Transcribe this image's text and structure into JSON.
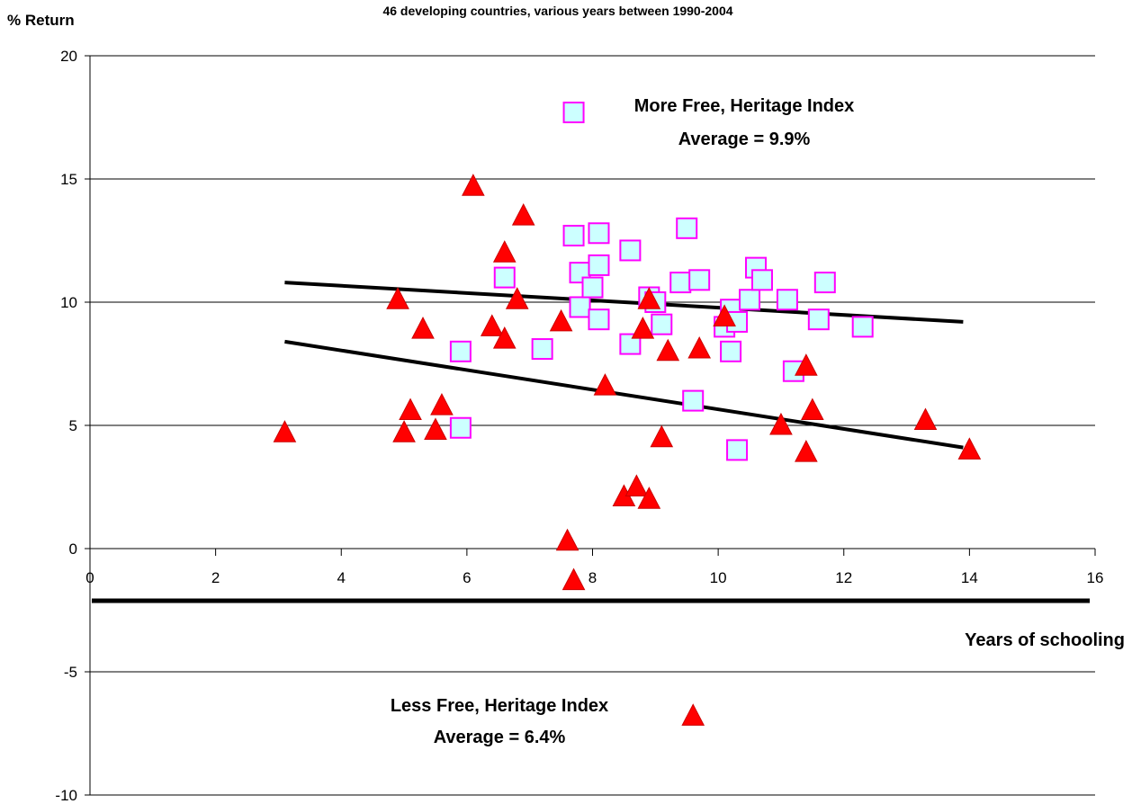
{
  "chart_data": {
    "type": "scatter",
    "title": "46 developing countries, various years between 1990-2004",
    "xlabel": "Years of schooling",
    "ylabel": "% Return",
    "xlim": [
      0,
      16
    ],
    "ylim": [
      -10,
      20
    ],
    "x_ticks": [
      "0",
      "2",
      "4",
      "6",
      "8",
      "10",
      "12",
      "14",
      "16"
    ],
    "y_ticks": [
      "20",
      "15",
      "10",
      "5",
      "0",
      "-5",
      "-10"
    ],
    "grid": "horizontal",
    "series": [
      {
        "marker": "square",
        "fill": "#ccffff",
        "stroke": "#ff00ff",
        "points": [
          [
            7.7,
            17.7
          ],
          [
            7.7,
            12.7
          ],
          [
            8.1,
            12.8
          ],
          [
            6.6,
            11.0
          ],
          [
            7.8,
            11.2
          ],
          [
            7.8,
            9.8
          ],
          [
            8.1,
            11.5
          ],
          [
            8.0,
            10.6
          ],
          [
            8.1,
            9.3
          ],
          [
            5.9,
            8.0
          ],
          [
            7.2,
            8.1
          ],
          [
            8.6,
            8.3
          ],
          [
            8.6,
            12.1
          ],
          [
            8.9,
            10.2
          ],
          [
            9.0,
            10.0
          ],
          [
            9.1,
            9.1
          ],
          [
            9.5,
            13.0
          ],
          [
            9.4,
            10.8
          ],
          [
            9.7,
            10.9
          ],
          [
            9.6,
            6.0
          ],
          [
            10.1,
            9.0
          ],
          [
            10.2,
            9.7
          ],
          [
            10.3,
            9.2
          ],
          [
            10.2,
            8.0
          ],
          [
            10.3,
            4.0
          ],
          [
            10.5,
            10.1
          ],
          [
            10.6,
            11.4
          ],
          [
            10.7,
            10.9
          ],
          [
            11.1,
            10.1
          ],
          [
            11.2,
            7.2
          ],
          [
            11.6,
            9.3
          ],
          [
            11.7,
            10.8
          ],
          [
            12.3,
            9.0
          ],
          [
            5.9,
            4.9
          ]
        ]
      },
      {
        "marker": "triangle",
        "fill": "#ff0000",
        "stroke": "#cc0000",
        "points": [
          [
            3.1,
            4.7
          ],
          [
            4.9,
            10.1
          ],
          [
            5.0,
            4.7
          ],
          [
            5.1,
            5.6
          ],
          [
            5.3,
            8.9
          ],
          [
            5.5,
            4.8
          ],
          [
            5.6,
            5.8
          ],
          [
            6.1,
            14.7
          ],
          [
            6.4,
            9.0
          ],
          [
            6.6,
            12.0
          ],
          [
            6.6,
            8.5
          ],
          [
            6.8,
            10.1
          ],
          [
            6.9,
            13.5
          ],
          [
            7.5,
            9.2
          ],
          [
            7.6,
            0.3
          ],
          [
            7.7,
            -1.3
          ],
          [
            8.2,
            6.6
          ],
          [
            8.5,
            2.1
          ],
          [
            8.7,
            2.5
          ],
          [
            8.8,
            8.9
          ],
          [
            8.9,
            10.1
          ],
          [
            8.9,
            2.0
          ],
          [
            9.1,
            4.5
          ],
          [
            9.2,
            8.0
          ],
          [
            9.7,
            8.1
          ],
          [
            9.6,
            -6.8
          ],
          [
            10.1,
            9.4
          ],
          [
            11.0,
            5.0
          ],
          [
            11.4,
            7.4
          ],
          [
            11.4,
            3.9
          ],
          [
            11.5,
            5.6
          ],
          [
            13.3,
            5.2
          ],
          [
            14.0,
            4.0
          ]
        ]
      }
    ],
    "trendlines": [
      {
        "x": [
          3.1,
          13.9
        ],
        "y": [
          10.8,
          9.2
        ]
      },
      {
        "x": [
          3.1,
          13.9
        ],
        "y": [
          8.4,
          4.1
        ]
      }
    ],
    "annotations": [
      {
        "line1": "More Free, Heritage Index",
        "line2": "Average = 9.9%"
      },
      {
        "line1": "Less Free, Heritage Index",
        "line2": "Average = 6.4%"
      }
    ]
  }
}
